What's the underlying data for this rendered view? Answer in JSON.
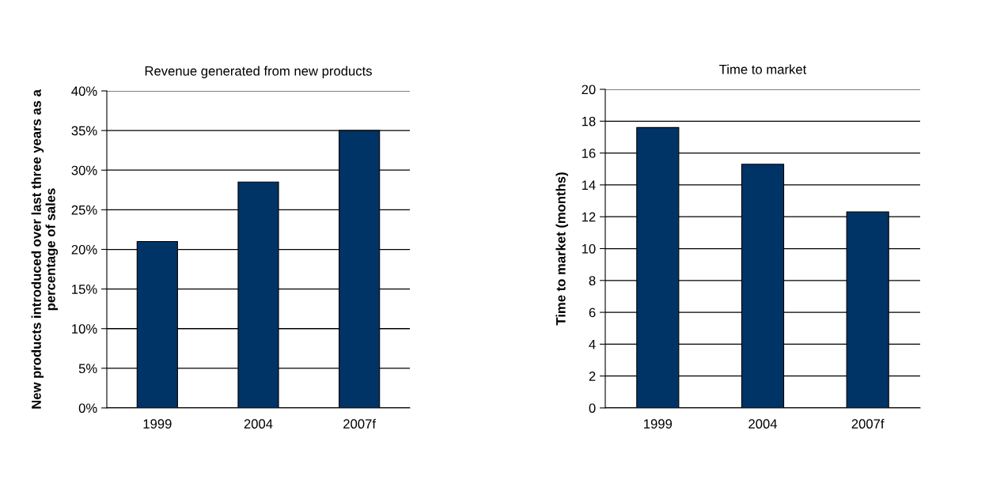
{
  "chart_data": [
    {
      "type": "bar",
      "title": "Revenue generated from new products",
      "ylabel": "New products introduced over last three years as a\npercentage of sales",
      "categories": [
        "1999",
        "2004",
        "2007f"
      ],
      "values": [
        21,
        28.5,
        35
      ],
      "color": "#003366",
      "ylim": [
        0,
        40
      ],
      "yticks": [
        {
          "value": 0,
          "label": "0%"
        },
        {
          "value": 5,
          "label": "5%"
        },
        {
          "value": 10,
          "label": "10%"
        },
        {
          "value": 15,
          "label": "15%"
        },
        {
          "value": 20,
          "label": "20%"
        },
        {
          "value": 25,
          "label": "25%"
        },
        {
          "value": 30,
          "label": "30%"
        },
        {
          "value": 35,
          "label": "35%"
        },
        {
          "value": 40,
          "label": "40%"
        }
      ],
      "grid": "y"
    },
    {
      "type": "bar",
      "title": "Time to market",
      "ylabel": "Time to market (months)",
      "categories": [
        "1999",
        "2004",
        "2007f"
      ],
      "values": [
        17.6,
        15.3,
        12.3
      ],
      "color": "#003366",
      "ylim": [
        0,
        20
      ],
      "yticks": [
        0,
        2,
        4,
        6,
        8,
        10,
        12,
        14,
        16,
        18,
        20
      ],
      "grid": "y"
    }
  ]
}
